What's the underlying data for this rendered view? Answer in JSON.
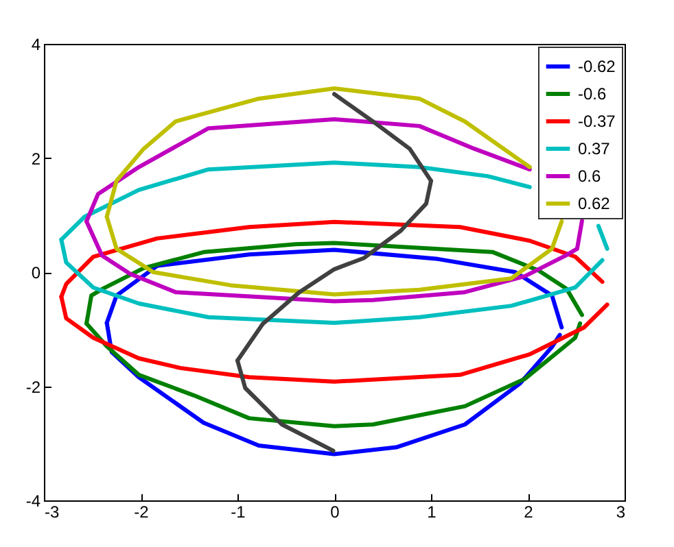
{
  "chart_data": {
    "type": "line",
    "xlim": [
      -3,
      3
    ],
    "ylim": [
      -4,
      4
    ],
    "xticks": [
      -3,
      -2,
      -1,
      0,
      1,
      2,
      3
    ],
    "yticks": [
      -4,
      -2,
      0,
      2,
      4
    ],
    "grid": false,
    "legend": "top right",
    "line_style": "solid",
    "marker": "none",
    "series": [
      {
        "name": "-0.62",
        "color": "#0000ff",
        "x": [
          -2.35,
          -2.25,
          -1.83,
          -0.88,
          0,
          1.07,
          1.87,
          2.25,
          2.35
        ],
        "values": [
          -0.89,
          -0.41,
          0.11,
          0.31,
          0.39,
          0.23,
          0.0,
          -0.41,
          -0.97
        ]
      },
      {
        "color": "#0000ff",
        "x": [
          -2.35,
          -2.3,
          -2.02,
          -1.35,
          -0.78,
          0,
          0.64,
          1.35,
          1.92,
          2.25,
          2.33
        ],
        "values": [
          -0.89,
          -1.4,
          -1.84,
          -2.64,
          -3.04,
          -3.19,
          -3.07,
          -2.67,
          -1.95,
          -1.31,
          -1.1
        ]
      },
      {
        "name": "-0.6",
        "color": "#008000",
        "x": [
          -2.56,
          -2.51,
          -2.39,
          -1.97,
          -1.35,
          -0.4,
          0,
          1.64,
          2.11,
          2.4,
          2.56
        ],
        "values": [
          -0.9,
          -0.41,
          -0.29,
          0.07,
          0.35,
          0.49,
          0.51,
          0.35,
          0.03,
          -0.29,
          -0.75
        ]
      },
      {
        "color": "#008000",
        "x": [
          -2.56,
          -2.35,
          -2.02,
          -1.45,
          -0.88,
          0,
          0.4,
          1.35,
          1.97,
          2.49,
          2.54
        ],
        "values": [
          -0.9,
          -1.3,
          -1.8,
          -2.16,
          -2.56,
          -2.7,
          -2.67,
          -2.35,
          -1.87,
          -1.15,
          -0.9
        ]
      },
      {
        "name": "-0.37",
        "color": "#ff0000",
        "x": [
          -2.82,
          -2.77,
          -2.49,
          -1.83,
          -0.88,
          0,
          1.3,
          2.02,
          2.49,
          2.77
        ],
        "values": [
          -0.43,
          -0.21,
          0.27,
          0.59,
          0.79,
          0.88,
          0.79,
          0.55,
          0.27,
          -0.17
        ]
      },
      {
        "color": "#ff0000",
        "x": [
          -2.82,
          -2.77,
          -2.49,
          -2.02,
          -1.59,
          -0.88,
          0,
          1.3,
          2.02,
          2.58,
          2.82
        ],
        "values": [
          -0.43,
          -0.81,
          -1.15,
          -1.51,
          -1.68,
          -1.84,
          -1.92,
          -1.8,
          -1.44,
          -0.97,
          -0.57
        ]
      },
      {
        "name": "0.37",
        "color": "#00bfbf",
        "x": [
          -2.82,
          -2.58,
          -2.02,
          -1.3,
          0,
          0.88,
          1.59,
          2.02,
          null,
          2.73,
          2.82
        ],
        "values": [
          0.57,
          0.97,
          1.44,
          1.8,
          1.92,
          1.84,
          1.68,
          1.49,
          null,
          0.81,
          0.41
        ]
      },
      {
        "color": "#00bfbf",
        "x": [
          -2.82,
          -2.77,
          -2.49,
          -2.02,
          -1.3,
          0,
          0.88,
          1.83,
          2.49,
          2.77
        ],
        "values": [
          0.57,
          0.17,
          -0.27,
          -0.55,
          -0.79,
          -0.89,
          -0.79,
          -0.59,
          -0.27,
          0.21
        ]
      },
      {
        "name": "0.6",
        "color": "#bf00bf",
        "x": [
          -2.56,
          -2.44,
          -2.02,
          -1.3,
          0,
          0.88,
          1.45,
          2.02
        ],
        "values": [
          0.89,
          1.37,
          1.84,
          2.52,
          2.68,
          2.56,
          2.16,
          1.8
        ]
      },
      {
        "color": "#bf00bf",
        "x": [
          -2.56,
          -2.4,
          -2.11,
          -1.64,
          0,
          0.4,
          1.35,
          1.97,
          2.39,
          2.51,
          2.56
        ],
        "values": [
          0.89,
          0.29,
          -0.03,
          -0.35,
          -0.51,
          -0.49,
          -0.35,
          -0.07,
          0.29,
          0.41,
          0.9
        ]
      },
      {
        "name": "0.62",
        "color": "#bfbf00",
        "x": [
          -2.35,
          -2.25,
          -1.97,
          -1.64,
          -0.78,
          0,
          0.88,
          1.35,
          2.02
        ],
        "values": [
          0.97,
          1.6,
          2.16,
          2.64,
          3.04,
          3.22,
          3.04,
          2.64,
          1.84
        ]
      },
      {
        "color": "#bfbf00",
        "x": [
          -2.35,
          -2.25,
          -1.87,
          -1.07,
          0,
          0.88,
          1.83,
          2.25,
          2.35
        ],
        "values": [
          0.97,
          0.41,
          0.0,
          -0.23,
          -0.39,
          -0.31,
          -0.11,
          0.41,
          0.89
        ]
      },
      {
        "color": "#404040",
        "x": [
          0,
          0.4,
          0.78,
          1.0
        ],
        "values": [
          3.12,
          2.64,
          2.16,
          1.6
        ]
      },
      {
        "color": "#404040",
        "x": [
          1.0,
          0.95,
          0.69,
          0.31,
          0,
          -0.36,
          -0.74,
          -1.0
        ],
        "values": [
          1.6,
          1.2,
          0.73,
          0.25,
          0.05,
          -0.35,
          -0.91,
          -1.55
        ]
      },
      {
        "color": "#404040",
        "x": [
          -1.0,
          -0.92,
          -0.54,
          -0.01
        ],
        "values": [
          -1.55,
          -2.03,
          -2.67,
          -3.13
        ]
      }
    ]
  }
}
